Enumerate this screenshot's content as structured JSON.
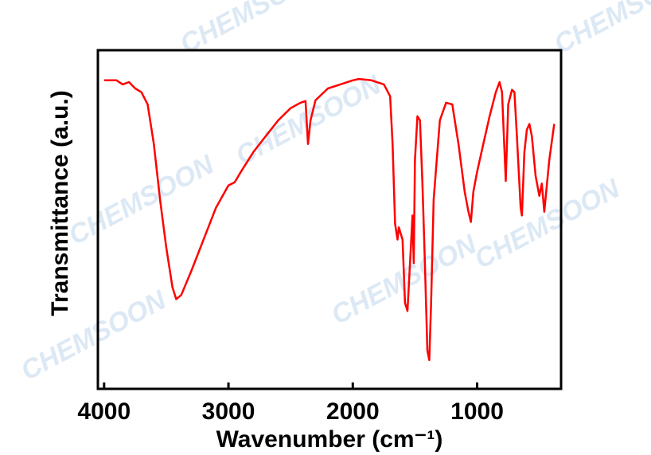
{
  "chart_data": {
    "type": "line",
    "x_label": "Wavenumber (cm⁻¹)",
    "y_label": "Transmittance (a.u.)",
    "watermark": "CHEMSOON",
    "xlim": [
      4050,
      325
    ],
    "xticks": [
      4000,
      3000,
      2000,
      1000
    ],
    "ylim": [
      0,
      100
    ],
    "series": [
      {
        "color": "#ff0000",
        "x": [
          4000,
          3900,
          3850,
          3800,
          3750,
          3700,
          3650,
          3600,
          3550,
          3500,
          3450,
          3420,
          3380,
          3300,
          3200,
          3100,
          3000,
          2950,
          2900,
          2800,
          2700,
          2600,
          2500,
          2420,
          2380,
          2360,
          2340,
          2300,
          2200,
          2100,
          2000,
          1950,
          1850,
          1750,
          1700,
          1680,
          1660,
          1640,
          1630,
          1600,
          1580,
          1560,
          1540,
          1520,
          1510,
          1500,
          1480,
          1460,
          1440,
          1420,
          1400,
          1385,
          1370,
          1350,
          1300,
          1250,
          1200,
          1150,
          1100,
          1070,
          1050,
          1030,
          1000,
          950,
          900,
          850,
          820,
          800,
          770,
          750,
          720,
          700,
          680,
          650,
          640,
          620,
          600,
          580,
          560,
          530,
          500,
          480,
          460,
          420,
          380
        ],
        "values": [
          91.1,
          91.1,
          89.9,
          90.6,
          88.7,
          87.6,
          84.0,
          72.3,
          55.9,
          41.8,
          30.0,
          26.5,
          27.7,
          34.7,
          44.1,
          53.5,
          60.1,
          61.0,
          64.1,
          69.9,
          74.6,
          79.3,
          82.9,
          84.5,
          85.0,
          72.3,
          79.3,
          85.2,
          88.7,
          89.9,
          91.1,
          91.5,
          91.1,
          89.9,
          86.4,
          72.3,
          48.8,
          44.1,
          47.7,
          44.1,
          25.4,
          23.0,
          37.1,
          51.2,
          37.1,
          67.6,
          80.5,
          79.3,
          60.6,
          37.1,
          11.3,
          8.5,
          25.4,
          55.9,
          79.3,
          84.5,
          84.0,
          72.3,
          58.2,
          52.3,
          49.3,
          58.2,
          64.1,
          72.3,
          80.5,
          87.6,
          90.6,
          87.6,
          61.4,
          84.0,
          88.3,
          87.6,
          74.6,
          53.5,
          51.2,
          69.9,
          76.5,
          78.2,
          74.6,
          62.9,
          57.0,
          60.6,
          52.3,
          67.6,
          78.2
        ]
      }
    ]
  }
}
